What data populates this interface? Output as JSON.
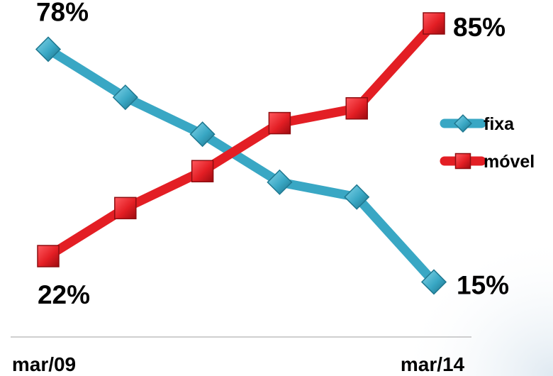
{
  "chart_data": {
    "type": "line",
    "categories": [
      "mar/09",
      "",
      "",
      "",
      "",
      "mar/14"
    ],
    "x_tick_labels": [
      "mar/09",
      "mar/14"
    ],
    "series": [
      {
        "name": "fixa",
        "values": [
          78,
          65,
          55,
          42,
          38,
          15
        ],
        "color": "#39a7c4",
        "marker": "diamond"
      },
      {
        "name": "móvel",
        "values": [
          22,
          35,
          45,
          58,
          62,
          85
        ],
        "color": "#e31e24",
        "marker": "square"
      }
    ],
    "data_labels": [
      {
        "series": "fixa",
        "index": 0,
        "text": "78%"
      },
      {
        "series": "fixa",
        "index": 5,
        "text": "15%"
      },
      {
        "series": "móvel",
        "index": 0,
        "text": "22%"
      },
      {
        "series": "móvel",
        "index": 5,
        "text": "85%"
      }
    ],
    "legend": {
      "position": "right",
      "items": [
        "fixa",
        "móvel"
      ]
    },
    "ylim": [
      10,
      90
    ],
    "grid": false,
    "title": "",
    "xlabel": "",
    "ylabel": ""
  }
}
